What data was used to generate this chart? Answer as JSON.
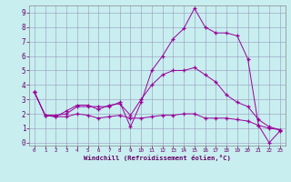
{
  "xlabel": "Windchill (Refroidissement éolien,°C)",
  "background_color": "#c8eef0",
  "line_color": "#990099",
  "grid_color": "#9999bb",
  "xlim": [
    -0.5,
    23.5
  ],
  "ylim": [
    -0.2,
    9.5
  ],
  "xticks": [
    0,
    1,
    2,
    3,
    4,
    5,
    6,
    7,
    8,
    9,
    10,
    11,
    12,
    13,
    14,
    15,
    16,
    17,
    18,
    19,
    20,
    21,
    22,
    23
  ],
  "yticks": [
    0,
    1,
    2,
    3,
    4,
    5,
    6,
    7,
    8,
    9
  ],
  "line1_x": [
    0,
    1,
    2,
    3,
    4,
    5,
    6,
    7,
    8,
    9,
    10,
    11,
    12,
    13,
    14,
    15,
    16,
    17,
    18,
    19,
    20,
    21,
    22,
    23
  ],
  "line1_y": [
    3.5,
    1.9,
    1.9,
    2.0,
    2.5,
    2.5,
    2.5,
    2.5,
    2.8,
    1.1,
    2.8,
    5.0,
    6.0,
    7.2,
    7.9,
    9.3,
    8.0,
    7.6,
    7.6,
    7.4,
    5.8,
    1.2,
    1.0,
    0.9
  ],
  "line2_x": [
    0,
    1,
    2,
    3,
    4,
    5,
    6,
    7,
    8,
    9,
    10,
    11,
    12,
    13,
    14,
    15,
    16,
    17,
    18,
    19,
    20,
    21,
    22,
    23
  ],
  "line2_y": [
    3.5,
    1.9,
    1.8,
    1.8,
    2.0,
    1.9,
    1.7,
    1.8,
    1.9,
    1.7,
    1.7,
    1.8,
    1.9,
    1.9,
    2.0,
    2.0,
    1.7,
    1.7,
    1.7,
    1.6,
    1.5,
    1.2,
    0.0,
    0.8
  ],
  "line3_x": [
    0,
    1,
    2,
    3,
    4,
    5,
    6,
    7,
    8,
    9,
    10,
    11,
    12,
    13,
    14,
    15,
    16,
    17,
    18,
    19,
    20,
    21,
    22,
    23
  ],
  "line3_y": [
    3.5,
    1.9,
    1.8,
    2.2,
    2.6,
    2.6,
    2.3,
    2.6,
    2.7,
    1.9,
    3.0,
    4.0,
    4.7,
    5.0,
    5.0,
    5.2,
    4.7,
    4.2,
    3.3,
    2.8,
    2.5,
    1.6,
    1.1,
    0.9
  ]
}
